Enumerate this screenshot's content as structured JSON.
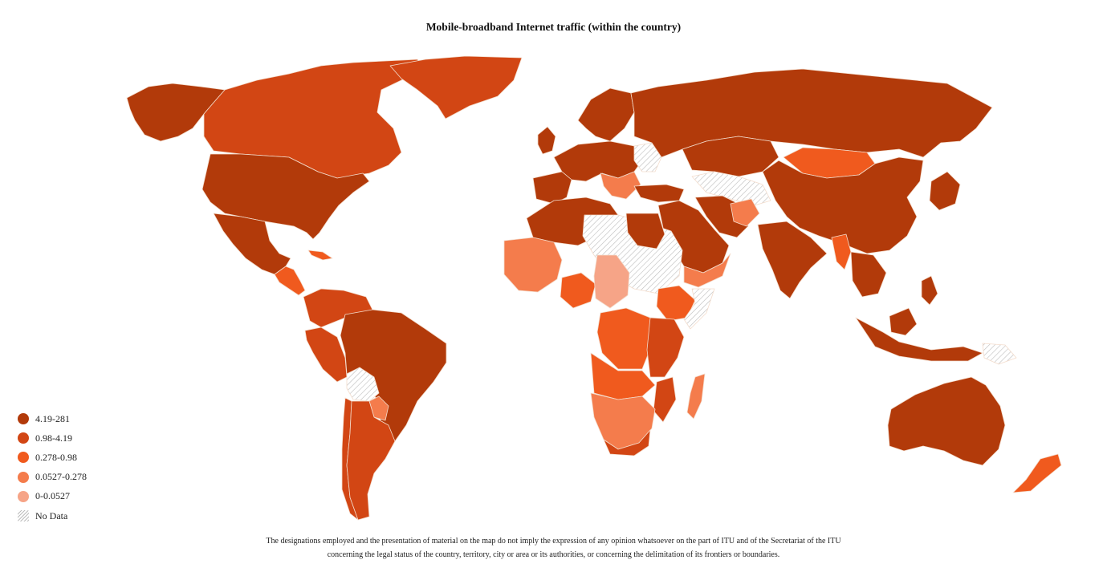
{
  "title": "Mobile-broadband Internet traffic (within the country)",
  "legend": {
    "items": [
      {
        "label": "4.19-281",
        "color": "#b23a0a"
      },
      {
        "label": "0.98-4.19",
        "color": "#d24614"
      },
      {
        "label": "0.278-0.98",
        "color": "#f05a1e"
      },
      {
        "label": "0.0527-0.278",
        "color": "#f47c4c"
      },
      {
        "label": "0-0.0527",
        "color": "#f6a487"
      }
    ],
    "no_data_label": "No Data"
  },
  "colors": {
    "no_data_hatch": "#bdbdbd",
    "border": "#f3dccc",
    "background": "#ffffff"
  },
  "disclaimer": {
    "line1": "The designations employed and the presentation of material on the map do not imply the expression of any opinion whatsoever on the part of ITU and of the Secretariat of the ITU",
    "line2": "concerning the legal status of the country, territory, city or area or its authorities, or concerning the delimitation of its frontiers or boundaries."
  }
}
